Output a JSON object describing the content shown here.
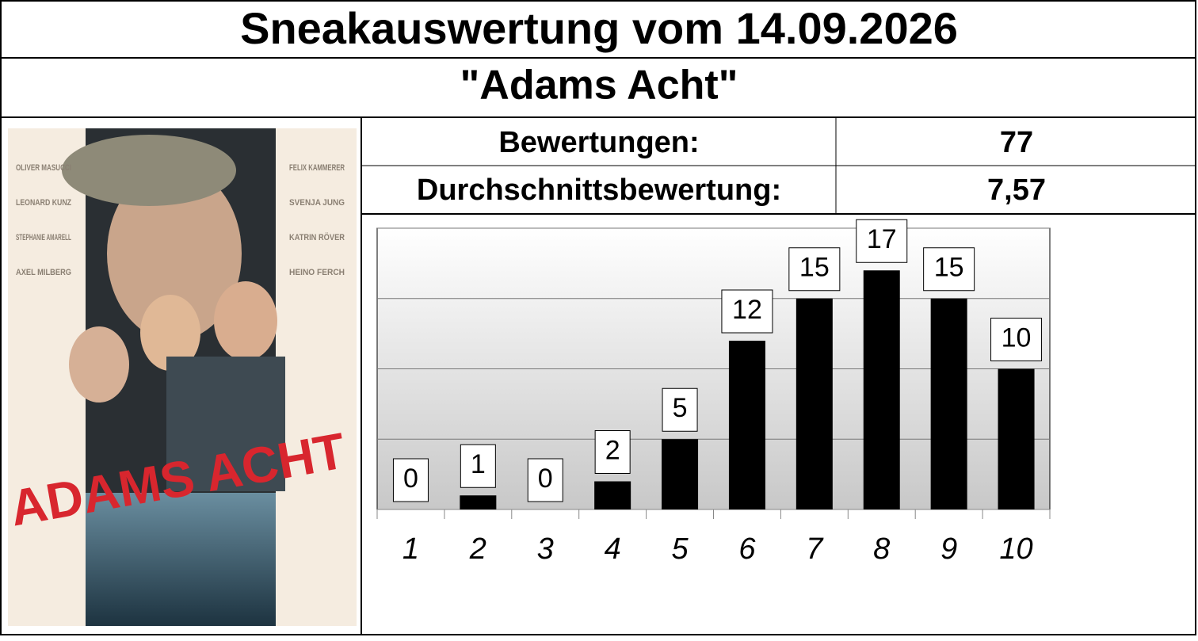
{
  "title": "Sneakauswertung vom 14.09.2026",
  "subtitle": "\"Adams Acht\"",
  "stats": [
    {
      "label": "Bewertungen:",
      "value": "77"
    },
    {
      "label": "Durchschnittsbewertung:",
      "value": "7,57"
    }
  ],
  "poster": {
    "title": "ADAMS ACHT",
    "cast_left": [
      "OLIVER MASUCCI",
      "LEONARD KUNZ",
      "STEPHANIE AMARELL",
      "AXEL MILBERG"
    ],
    "cast_right": [
      "FELIX KAMMERER",
      "SVENJA JUNG",
      "KATRIN RÖVER",
      "HEINO FERCH"
    ]
  },
  "chart_data": {
    "type": "bar",
    "categories": [
      "1",
      "2",
      "3",
      "4",
      "5",
      "6",
      "7",
      "8",
      "9",
      "10"
    ],
    "values": [
      0,
      1,
      0,
      2,
      5,
      12,
      15,
      17,
      15,
      10
    ],
    "color": "#000000",
    "ylim": [
      0,
      20
    ],
    "yticks": [
      0,
      5,
      10,
      15,
      20
    ],
    "grid": true
  }
}
